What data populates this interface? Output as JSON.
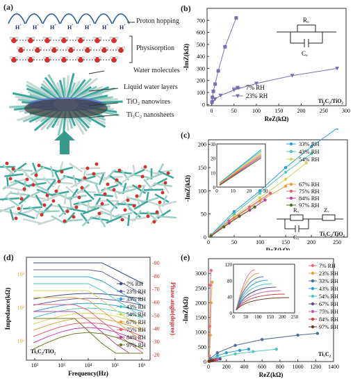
{
  "panel_a": {
    "label": "(a)",
    "ion_h": "H",
    "ion_plus": "+",
    "annotations": {
      "proton_hopping": "Proton hopping",
      "physisorption": "Physisorption",
      "water_molecules": "Water molecules",
      "liquid_water_layers": "Liquid water layers",
      "tio2_nanowires": "TiO₂ nanowires",
      "ti3c2_nanosheets": "Ti₃C₂ nanosheets"
    }
  },
  "chart_data": [
    {
      "panel": "(b)",
      "type": "scatter",
      "xlabel": "ReZ(kΩ)",
      "ylabel": "-ImZ(kΩ)",
      "xlim": [
        -10,
        300
      ],
      "ylim": [
        -10,
        800
      ],
      "xticks": [
        0,
        50,
        100,
        150,
        200,
        250,
        300
      ],
      "yticks": [
        0,
        100,
        200,
        300,
        400,
        500,
        600,
        700
      ],
      "legend_position": "center",
      "circuit": {
        "r_label": "Rₒ",
        "c_label": "Cₒ"
      },
      "material_label": "Ti₃C₂/TiO₂",
      "series": [
        {
          "name": "7% RH",
          "color": "#7b6fb0",
          "marker": "square",
          "x": [
            1,
            2,
            4,
            8,
            15,
            30,
            55
          ],
          "y": [
            20,
            60,
            110,
            170,
            280,
            480,
            720
          ]
        },
        {
          "name": "23% RH",
          "color": "#7b6fb0",
          "marker": "triangle-down",
          "x": [
            1,
            3,
            8,
            20,
            50,
            100,
            180,
            280
          ],
          "y": [
            10,
            25,
            45,
            75,
            120,
            175,
            240,
            300
          ]
        }
      ]
    },
    {
      "panel": "(c)",
      "type": "scatter",
      "xlabel": "ReZ(kΩ)",
      "ylabel": "-ImZ(kΩ)",
      "xlim": [
        0,
        270
      ],
      "ylim": [
        0,
        210
      ],
      "xticks": [
        0,
        50,
        100,
        150,
        200,
        250
      ],
      "yticks": [
        0,
        50,
        100,
        150,
        200
      ],
      "legend_position": "right",
      "circuit": {
        "r_label": "Rₒ",
        "z_label": "Zᵥ",
        "c_label": "Cₒ"
      },
      "material_label": "Ti₃C₂/TiO₂",
      "inset": {
        "xticks": [
          0,
          10,
          20,
          30
        ],
        "yticks": [
          0,
          10,
          20,
          30
        ]
      },
      "series": [
        {
          "name": "33% RH",
          "color": "#2a9fd6",
          "x": [
            5,
            50,
            100,
            150,
            200,
            250
          ],
          "y": [
            5,
            55,
            100,
            150,
            195,
            235
          ]
        },
        {
          "name": "43% RH",
          "color": "#4fc7b8",
          "x": [
            5,
            50,
            100,
            150,
            200
          ],
          "y": [
            4,
            50,
            95,
            140,
            180
          ]
        },
        {
          "name": "54% RH",
          "color": "#d4d060",
          "x": [
            5,
            50,
            100,
            150,
            190
          ],
          "y": [
            4,
            45,
            85,
            125,
            160
          ]
        },
        {
          "name": "67% RH",
          "color": "#e6a040",
          "x": [
            5,
            50,
            100,
            150
          ],
          "y": [
            3,
            40,
            78,
            110
          ]
        },
        {
          "name": "75% RH",
          "color": "#e0607a",
          "x": [
            5,
            40,
            80,
            120
          ],
          "y": [
            3,
            35,
            65,
            95
          ]
        },
        {
          "name": "84% RH",
          "color": "#c040a0",
          "x": [
            5,
            40,
            80,
            110
          ],
          "y": [
            3,
            30,
            58,
            80
          ]
        },
        {
          "name": "97% RH",
          "color": "#4a6a20",
          "x": [
            5,
            30,
            60,
            90
          ],
          "y": [
            2,
            22,
            45,
            65
          ]
        }
      ]
    },
    {
      "panel": "(d)",
      "type": "line",
      "xlabel": "Frequency(Hz)",
      "ylabel": "Impedance(kΩ)",
      "y2label": "Phase angle(degree)",
      "xscale": "log",
      "yscale": "log",
      "xticks": [
        "10²",
        "10³",
        "10⁴",
        "10⁵",
        "10⁶"
      ],
      "yticks_left": [
        "10¹",
        "10²",
        "10³"
      ],
      "yticks_right": [
        -90,
        -80,
        -70,
        -60,
        -50,
        -40,
        -30,
        -20
      ],
      "legend_position": "right",
      "material_label": "Ti₃C₂/TiO₂",
      "series": [
        {
          "name": "7% RH",
          "color": "#3a4a8a"
        },
        {
          "name": "23% RH",
          "color": "#6a5aa0"
        },
        {
          "name": "33% RH",
          "color": "#2a9fd6"
        },
        {
          "name": "43% RH",
          "color": "#4fc7b8"
        },
        {
          "name": "54% RH",
          "color": "#d4d060"
        },
        {
          "name": "67% RH",
          "color": "#e6a040"
        },
        {
          "name": "75% RH",
          "color": "#e0607a"
        },
        {
          "name": "84% RH",
          "color": "#c040a0"
        },
        {
          "name": "97% RH",
          "color": "#6a7a20"
        }
      ]
    },
    {
      "panel": "(e)",
      "type": "scatter",
      "xlabel": "ReZ(kΩ)",
      "ylabel": "-ImZ(kΩ)",
      "xlim": [
        0,
        1400
      ],
      "ylim": [
        0,
        3500
      ],
      "xticks": [
        0,
        200,
        400,
        600,
        800,
        1000,
        1200,
        1400
      ],
      "yticks": [
        0,
        500,
        1000,
        1500,
        2000,
        2500,
        3000
      ],
      "legend_position": "right",
      "material_label": "Ti₃C₂",
      "inset": {
        "xticks": [
          0,
          50,
          100,
          150,
          200,
          250
        ],
        "yticks": [
          0,
          40,
          80,
          120
        ]
      },
      "series": [
        {
          "name": "7% RH",
          "color": "#e0708a",
          "x": [
            10,
            15,
            20,
            30
          ],
          "y": [
            200,
            1200,
            2600,
            3100
          ]
        },
        {
          "name": "23% RH",
          "color": "#e6a040",
          "x": [
            10,
            20,
            30,
            40
          ],
          "y": [
            100,
            900,
            2000,
            2700
          ]
        },
        {
          "name": "33% RH",
          "color": "#4a6aa0",
          "x": [
            20,
            100,
            300,
            600,
            1000,
            1220
          ],
          "y": [
            100,
            300,
            550,
            750,
            900,
            960
          ]
        },
        {
          "name": "43% RH",
          "color": "#2a9fd6",
          "x": [
            20,
            100,
            200,
            350,
            450
          ],
          "y": [
            60,
            200,
            300,
            380,
            420
          ]
        },
        {
          "name": "54% RH",
          "color": "#4fc7b8",
          "x": [
            20,
            100,
            300,
            500,
            760
          ],
          "y": [
            40,
            130,
            260,
            340,
            420
          ]
        },
        {
          "name": "67% RH",
          "color": "#5a4a8a",
          "x": [
            10,
            30,
            80,
            130
          ],
          "y": [
            20,
            40,
            70,
            90
          ]
        },
        {
          "name": "75% RH",
          "color": "#c060a0",
          "x": [
            10,
            30,
            60,
            100
          ],
          "y": [
            15,
            30,
            50,
            70
          ]
        },
        {
          "name": "84% RH",
          "color": "#d04040",
          "x": [
            8,
            20,
            40,
            70
          ],
          "y": [
            10,
            22,
            35,
            50
          ]
        },
        {
          "name": "97% RH",
          "color": "#6a3a20",
          "x": [
            5,
            15,
            30,
            50
          ],
          "y": [
            8,
            15,
            25,
            35
          ]
        }
      ]
    }
  ]
}
